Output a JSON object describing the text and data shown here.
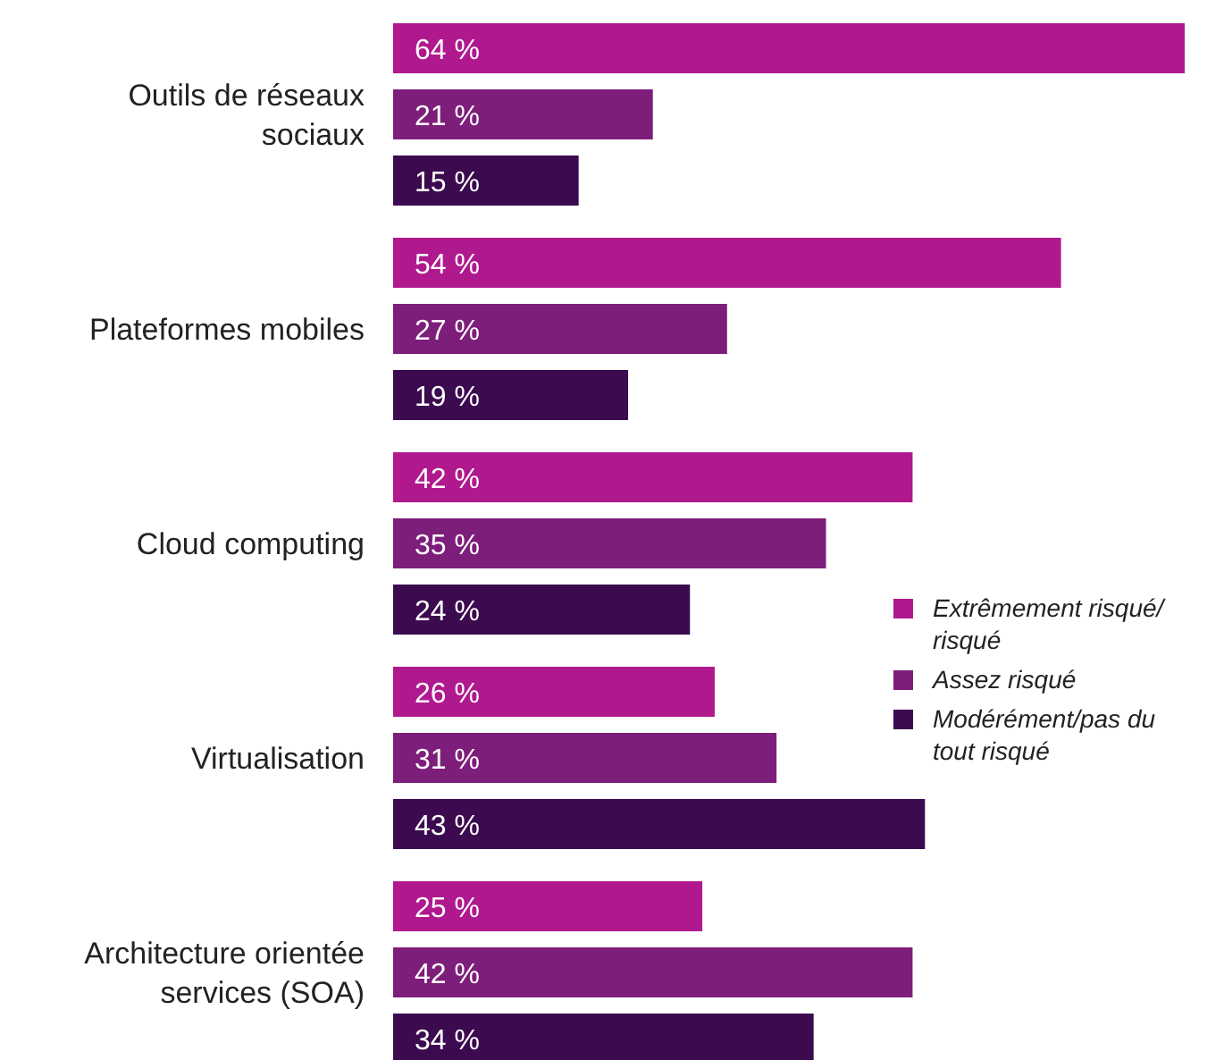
{
  "chart_data": {
    "type": "bar",
    "orientation": "horizontal",
    "legend": "right",
    "categories": [
      "Outils de réseaux sociaux",
      "Plateformes mobiles",
      "Cloud computing",
      "Virtualisation",
      "Architecture orientée services (SOA)"
    ],
    "series": [
      {
        "name": "Extrêmement risqué/ risqué",
        "color": "#b0188e",
        "values": [
          64,
          54,
          42,
          26,
          25
        ],
        "value_labels": [
          "64 %",
          "54 %",
          "42 %",
          "26 %",
          "25 %"
        ]
      },
      {
        "name": "Assez risqué",
        "color": "#7e1e7b",
        "values": [
          21,
          27,
          35,
          31,
          42
        ],
        "value_labels": [
          "21 %",
          "27 %",
          "35 %",
          "31 %",
          "42 %"
        ]
      },
      {
        "name": "Modérément/pas du tout risqué",
        "color": "#3c0a4f",
        "values": [
          15,
          19,
          24,
          43,
          34
        ],
        "value_labels": [
          "15 %",
          "19 %",
          "24 %",
          "43 %",
          "34 %"
        ]
      }
    ]
  }
}
